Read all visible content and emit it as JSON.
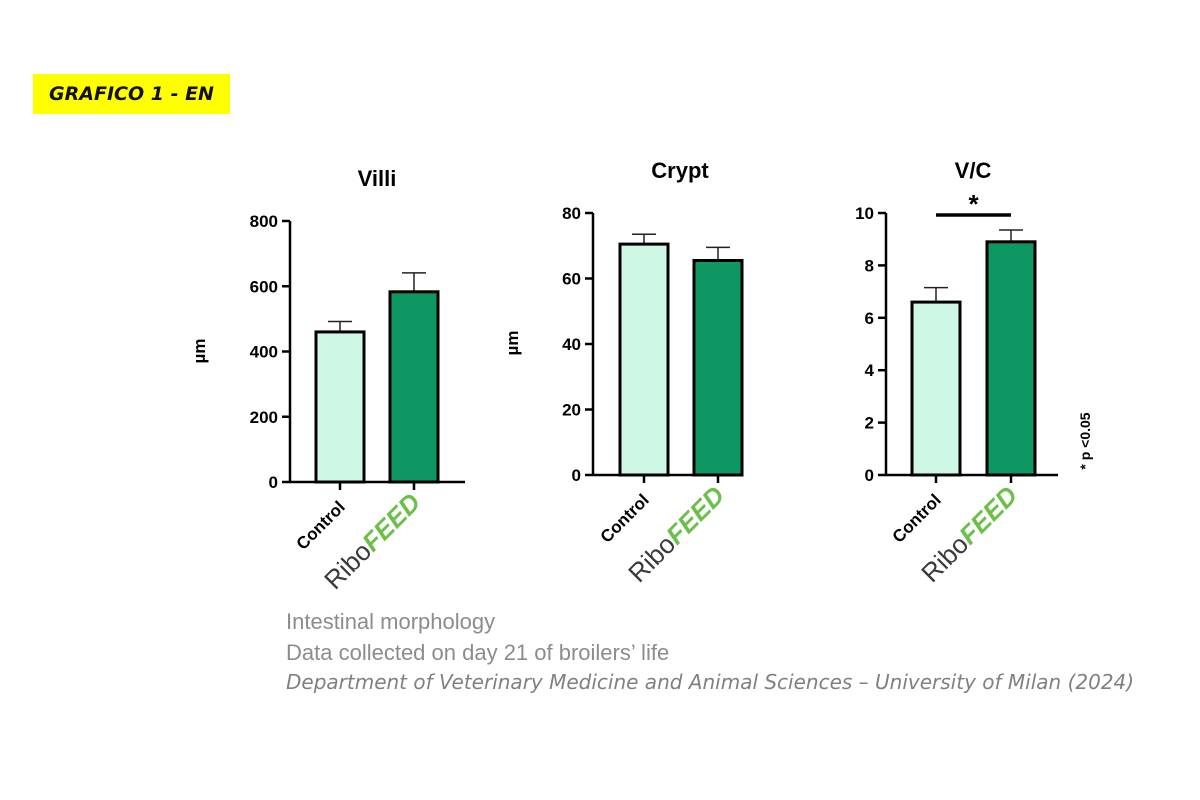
{
  "tag": "GRAFICO 1 - EN",
  "colors": {
    "control": "#cff7e6",
    "ribofeed": "#0f9763",
    "brand_green": "#6cc04a",
    "brand_dark": "#3a3a3a",
    "tag_bg": "#ffff00"
  },
  "chart_data": [
    {
      "type": "bar",
      "title": "Villi",
      "ylabel": "µm",
      "ylim": [
        0,
        800
      ],
      "yticks": [
        "0",
        "200",
        "400",
        "600",
        "800"
      ],
      "categories": [
        "Control",
        "RiboFEED"
      ],
      "values": [
        460,
        583
      ],
      "error": [
        32,
        58
      ]
    },
    {
      "type": "bar",
      "title": "Crypt",
      "ylabel": "µm",
      "ylim": [
        0,
        80
      ],
      "yticks": [
        "0",
        "20",
        "40",
        "60",
        "80"
      ],
      "categories": [
        "Control",
        "RiboFEED"
      ],
      "values": [
        70.5,
        65.5
      ],
      "error": [
        3,
        4
      ]
    },
    {
      "type": "bar",
      "title": "V/C",
      "ylabel": "",
      "ylim": [
        0,
        10
      ],
      "yticks": [
        "0",
        "2",
        "4",
        "6",
        "8",
        "10"
      ],
      "categories": [
        "Control",
        "RiboFEED"
      ],
      "values": [
        6.6,
        8.9
      ],
      "error": [
        0.55,
        0.45
      ],
      "significance": "*",
      "note": "* p <0.05"
    }
  ],
  "caption": {
    "line1": "Intestinal morphology",
    "line2": "Data collected on day 21 of broilers’ life",
    "line3": "Department of Veterinary Medicine and Animal Sciences – University of Milan (2024)"
  }
}
